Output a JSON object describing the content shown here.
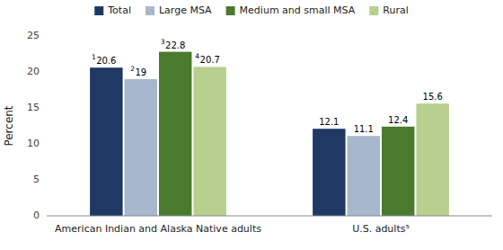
{
  "chart_data": {
    "type": "bar",
    "categories": [
      "American Indian and Alaska Native adults",
      "U.S. adults⁵"
    ],
    "series": [
      {
        "name": "Total",
        "color": "#1f3864",
        "values": [
          20.6,
          12.1
        ],
        "annotations": [
          "1",
          null
        ]
      },
      {
        "name": "Large MSA",
        "color": "#a8b8cc",
        "values": [
          19.0,
          11.1
        ],
        "annotations": [
          "2",
          null
        ]
      },
      {
        "name": "Medium and small MSA",
        "color": "#4a7a2e",
        "values": [
          22.8,
          12.4
        ],
        "annotations": [
          "3",
          null
        ]
      },
      {
        "name": "Rural",
        "color": "#b8cf8e",
        "values": [
          20.7,
          15.6
        ],
        "annotations": [
          "4",
          null
        ]
      }
    ],
    "ylabel": "Percent",
    "ylim": [
      0,
      25
    ],
    "yticks": [
      0,
      5,
      10,
      15,
      20,
      25
    ],
    "grid": false,
    "legend": "top",
    "data_labels": true
  }
}
